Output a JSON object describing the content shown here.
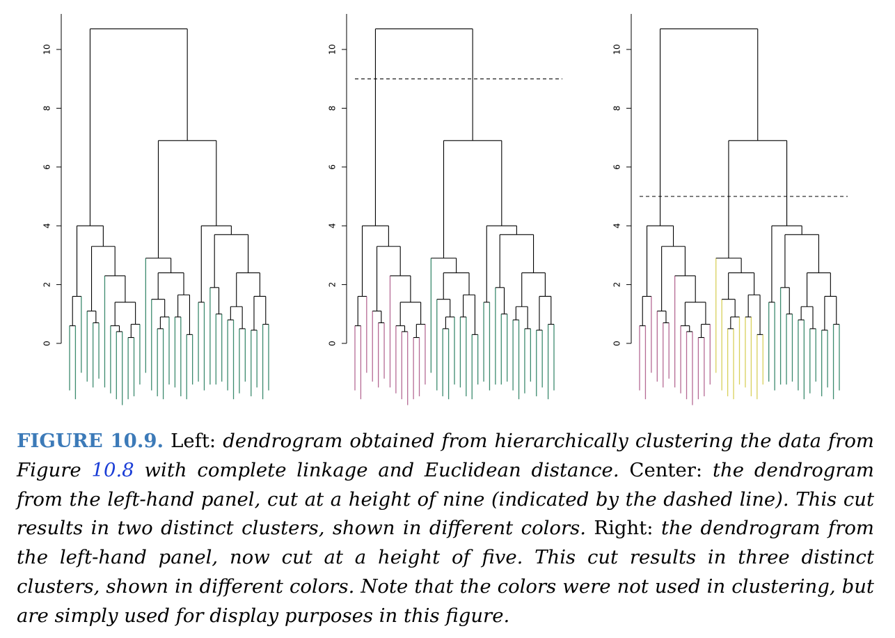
{
  "chart_data": [
    {
      "type": "dendrogram",
      "panel": "left",
      "yticks": [
        0,
        2,
        4,
        6,
        8,
        10
      ],
      "ylim": [
        -2,
        11
      ],
      "cut_height": null,
      "leaf_colors": [
        "#3c8a6e"
      ]
    },
    {
      "type": "dendrogram",
      "panel": "center",
      "yticks": [
        0,
        2,
        4,
        6,
        8,
        10
      ],
      "ylim": [
        -2,
        11
      ],
      "cut_height": 9,
      "clusters": 2,
      "leaf_colors": [
        "#b56a94",
        "#3c8a6e"
      ]
    },
    {
      "type": "dendrogram",
      "panel": "right",
      "yticks": [
        0,
        2,
        4,
        6,
        8,
        10
      ],
      "ylim": [
        -2,
        11
      ],
      "cut_height": 5,
      "clusters": 3,
      "leaf_colors": [
        "#b56a94",
        "#d8d05a",
        "#3c8a6e"
      ]
    }
  ],
  "caption": {
    "label": "FIGURE 10.9.",
    "left_word": "Left:",
    "text1": "dendrogram obtained from hierarchically clustering the data from Figure",
    "ref": "10.8",
    "text2": "with complete linkage and Euclidean distance.",
    "center_word": "Center:",
    "text3": "the dendrogram from the left-hand panel, cut at a height of nine (indicated by the dashed line). This cut results in two distinct clusters, shown in different colors.",
    "right_word": "Right:",
    "text4": "the dendrogram from the left-hand panel, now cut at a height of five. This cut results in three distinct clusters, shown in different colors. Note that the colors were not used in clustering, but are simply used for display purposes in this figure."
  }
}
